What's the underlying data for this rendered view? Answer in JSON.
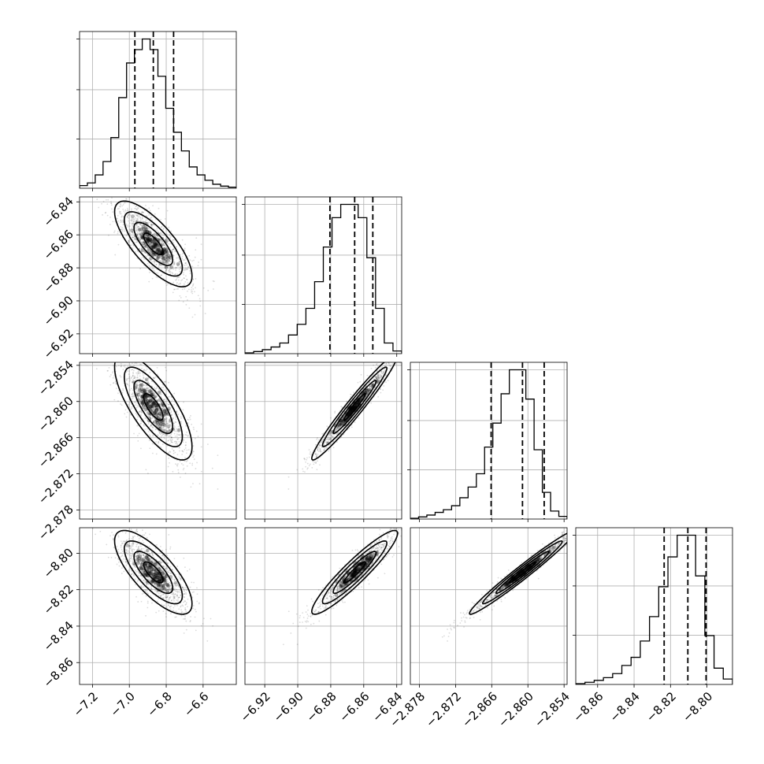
{
  "chart_data": {
    "type": "corner",
    "grid": true,
    "parameters": [
      {
        "range": [
          -7.27,
          -6.42
        ],
        "ticks": [
          -7.2,
          -7.0,
          -6.8,
          -6.6
        ],
        "tick_labels": [
          "−7.2",
          "−7.0",
          "−6.8",
          "−6.6"
        ],
        "quantiles": [
          -6.97,
          -6.87,
          -6.76
        ],
        "histogram": [
          1,
          2,
          5,
          10,
          19,
          34,
          47,
          52,
          56,
          52,
          42,
          30,
          21,
          14,
          8,
          5,
          3,
          1.5,
          0.8,
          0.4
        ]
      },
      {
        "range": [
          -6.932,
          -6.837
        ],
        "ticks": [
          -6.92,
          -6.9,
          -6.88,
          -6.86,
          -6.84
        ],
        "tick_labels": [
          "−6.92",
          "−6.90",
          "−6.88",
          "−6.86",
          "−6.84"
        ],
        "quantiles": [
          -6.8805,
          -6.8655,
          -6.8545
        ],
        "histogram": [
          0.3,
          0.8,
          1.5,
          2.5,
          4,
          7,
          11,
          17,
          27,
          40,
          51,
          56,
          56,
          51,
          36,
          17,
          4,
          1
        ]
      },
      {
        "range": [
          -2.8795,
          -2.8535
        ],
        "ticks": [
          -2.878,
          -2.872,
          -2.866,
          -2.86,
          -2.854
        ],
        "tick_labels": [
          "−2.878",
          "−2.872",
          "−2.866",
          "−2.860",
          "−2.854"
        ],
        "quantiles": [
          -2.8661,
          -2.8609,
          -2.8573
        ],
        "histogram": [
          0.3,
          0.8,
          1.5,
          2.5,
          3.5,
          5,
          8,
          12,
          17,
          27,
          36,
          47,
          56,
          56,
          45,
          26,
          10,
          3,
          1
        ]
      },
      {
        "range": [
          -8.872,
          -8.786
        ],
        "ticks": [
          -8.86,
          -8.84,
          -8.82,
          -8.8
        ],
        "tick_labels": [
          "−8.86",
          "−8.84",
          "−8.82",
          "−8.80"
        ],
        "quantiles": [
          -8.8235,
          -8.8105,
          -8.8005
        ],
        "histogram": [
          0.3,
          0.8,
          1.5,
          2.5,
          4,
          7,
          10,
          16,
          25,
          36,
          47,
          55,
          55,
          40,
          18,
          6,
          2
        ]
      }
    ],
    "correlations": [
      [
        1.0,
        -0.75,
        -0.75,
        -0.75
      ],
      [
        -0.75,
        1.0,
        0.97,
        0.93
      ],
      [
        -0.75,
        0.97,
        1.0,
        0.98
      ],
      [
        -0.75,
        0.93,
        0.98,
        1.0
      ]
    ],
    "contour_sigma_levels": [
      0.5,
      1.0,
      1.5,
      2.0
    ]
  }
}
